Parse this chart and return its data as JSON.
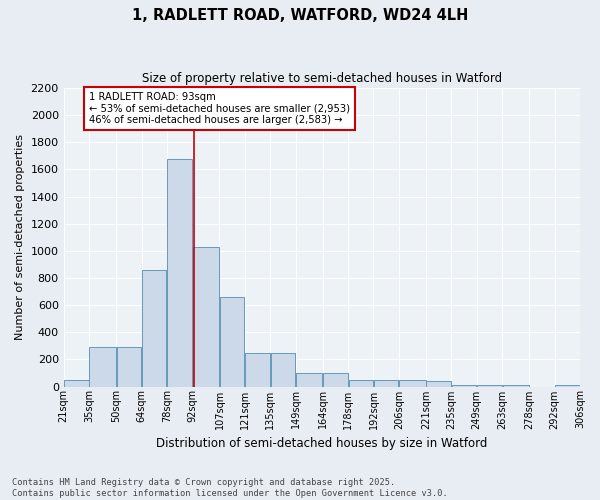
{
  "title": "1, RADLETT ROAD, WATFORD, WD24 4LH",
  "subtitle": "Size of property relative to semi-detached houses in Watford",
  "xlabel": "Distribution of semi-detached houses by size in Watford",
  "ylabel": "Number of semi-detached properties",
  "bin_labels": [
    "21sqm",
    "35sqm",
    "50sqm",
    "64sqm",
    "78sqm",
    "92sqm",
    "107sqm",
    "121sqm",
    "135sqm",
    "149sqm",
    "164sqm",
    "178sqm",
    "192sqm",
    "206sqm",
    "221sqm",
    "235sqm",
    "249sqm",
    "263sqm",
    "278sqm",
    "292sqm",
    "306sqm"
  ],
  "bin_edges": [
    21,
    35,
    50,
    64,
    78,
    92,
    107,
    121,
    135,
    149,
    164,
    178,
    192,
    206,
    221,
    235,
    249,
    263,
    278,
    292,
    306
  ],
  "bar_heights": [
    50,
    290,
    290,
    860,
    1680,
    1030,
    660,
    250,
    250,
    100,
    100,
    50,
    45,
    45,
    40,
    10,
    10,
    10,
    0,
    10
  ],
  "bar_color": "#ccd9e8",
  "bar_edge_color": "#6699bb",
  "property_value": 93,
  "property_label": "1 RADLETT ROAD: 93sqm",
  "smaller_pct": 53,
  "smaller_count": "2,953",
  "larger_pct": 46,
  "larger_count": "2,583",
  "vline_color": "#cc0000",
  "annotation_box_color": "#cc0000",
  "ylim": [
    0,
    2200
  ],
  "yticks": [
    0,
    200,
    400,
    600,
    800,
    1000,
    1200,
    1400,
    1600,
    1800,
    2000,
    2200
  ],
  "bg_color": "#e8edf3",
  "plot_bg_color": "#edf2f7",
  "grid_color": "#ffffff",
  "footer": "Contains HM Land Registry data © Crown copyright and database right 2025.\nContains public sector information licensed under the Open Government Licence v3.0."
}
